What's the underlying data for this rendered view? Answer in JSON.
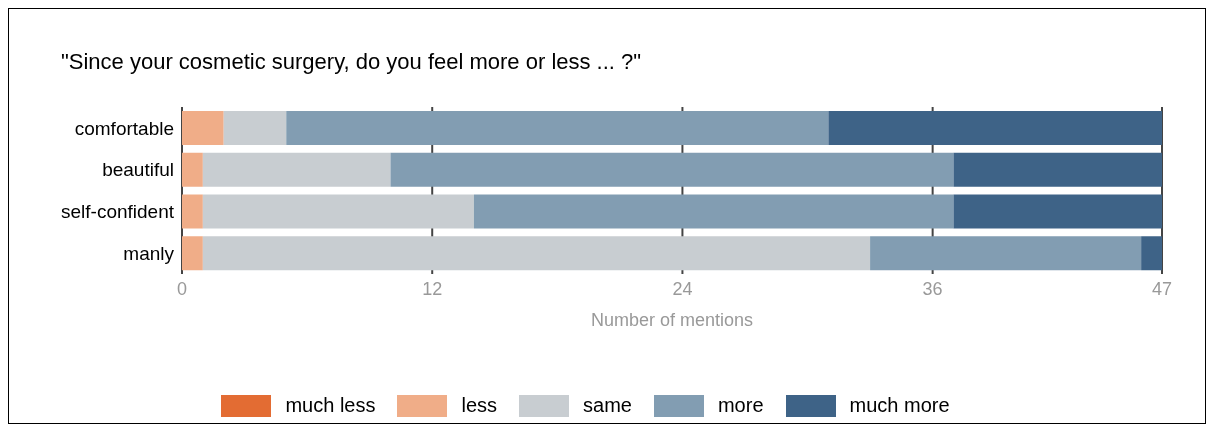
{
  "chart_data": {
    "type": "bar",
    "orientation": "horizontal",
    "stacked": true,
    "title": "\"Since your cosmetic surgery, do you feel more or less ... ?\"",
    "xlabel": "Number of mentions",
    "categories": [
      "comfortable",
      "beautiful",
      "self-confident",
      "manly"
    ],
    "series": [
      {
        "name": "much less",
        "color": "#e36c33",
        "values": [
          0,
          0,
          0,
          0
        ]
      },
      {
        "name": "less",
        "color": "#f0ad88",
        "values": [
          2,
          1,
          1,
          1
        ]
      },
      {
        "name": "same",
        "color": "#c8cdd1",
        "values": [
          3,
          9,
          13,
          32
        ]
      },
      {
        "name": "more",
        "color": "#829db2",
        "values": [
          26,
          27,
          23,
          13
        ]
      },
      {
        "name": "much more",
        "color": "#3e6387",
        "values": [
          16,
          10,
          10,
          1
        ]
      }
    ],
    "xlim": [
      0,
      47
    ],
    "xticks": [
      0,
      12,
      24,
      36,
      47
    ],
    "grid": "x",
    "legend": "bottom"
  }
}
